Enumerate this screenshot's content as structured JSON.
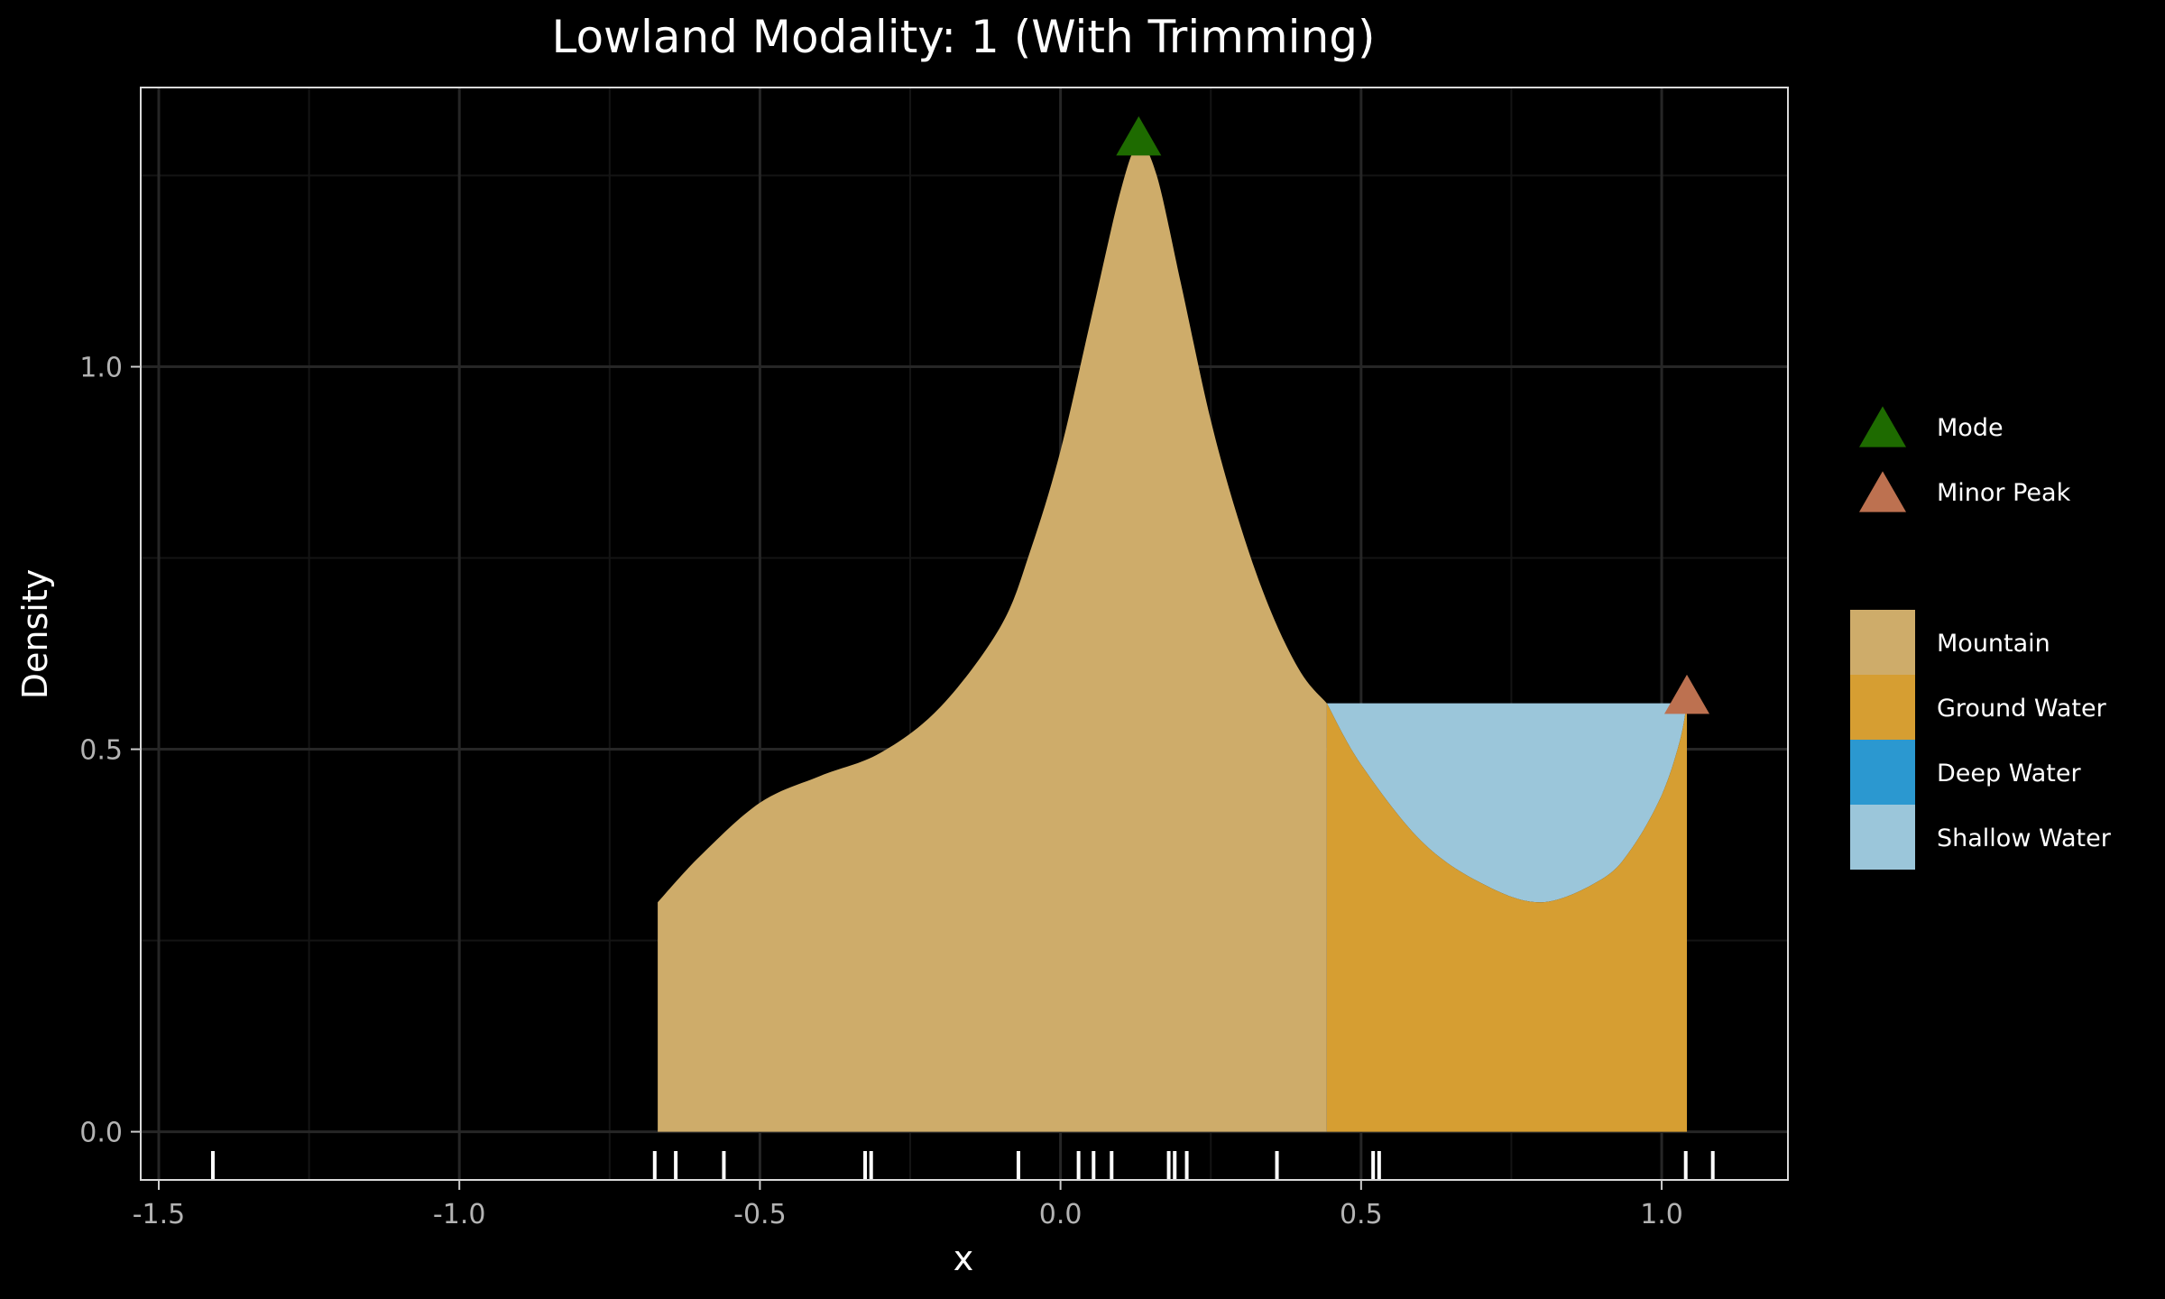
{
  "chart_data": {
    "type": "area",
    "title": "Lowland Modality: 1 (With Trimming)",
    "xlabel": "x",
    "ylabel": "Density",
    "xlim": [
      -1.53,
      1.21
    ],
    "ylim": [
      -0.063,
      1.365
    ],
    "x_ticks": [
      -1.5,
      -1.0,
      -0.5,
      0.0,
      0.5,
      1.0
    ],
    "x_tick_labels": [
      "-1.5",
      "-1.0",
      "-0.5",
      "0.0",
      "0.5",
      "1.0"
    ],
    "y_ticks": [
      0.0,
      0.5,
      1.0
    ],
    "y_tick_labels": [
      "0.0",
      "0.5",
      "1.0"
    ],
    "grid": true,
    "legend_position": "right",
    "colors": {
      "background": "#000000",
      "panel_border": "#d9d9d9",
      "grid_major": "#262626",
      "grid_minor": "#141414",
      "mountain": "#ceac6a",
      "ground_water": "#d69e32",
      "deep_water": "#2b98d0",
      "shallow_water": "#9bc6da",
      "mode": "#1e6b00",
      "minor_peak": "#bd7150",
      "rug": "#ffffff"
    },
    "density": {
      "x": [
        -0.67,
        -0.6,
        -0.5,
        -0.4,
        -0.3,
        -0.2,
        -0.1,
        -0.05,
        0.0,
        0.05,
        0.1,
        0.13,
        0.16,
        0.2,
        0.25,
        0.3,
        0.35,
        0.4,
        0.443,
        0.5,
        0.6,
        0.7,
        0.8,
        0.9,
        0.95,
        1.0,
        1.03,
        1.042
      ],
      "y": [
        0.3,
        0.36,
        0.43,
        0.465,
        0.495,
        0.555,
        0.66,
        0.76,
        0.89,
        1.06,
        1.23,
        1.29,
        1.25,
        1.11,
        0.93,
        0.79,
        0.68,
        0.6,
        0.56,
        0.48,
        0.38,
        0.325,
        0.3,
        0.33,
        0.37,
        0.44,
        0.51,
        0.56
      ]
    },
    "trim_x": 0.443,
    "valley_fill_level": 0.56,
    "series": [
      {
        "name": "Mountain",
        "color": "#ceac6a"
      },
      {
        "name": "Ground Water",
        "color": "#d69e32"
      },
      {
        "name": "Deep Water",
        "color": "#2b98d0"
      },
      {
        "name": "Shallow Water",
        "color": "#9bc6da"
      }
    ],
    "markers": [
      {
        "name": "Mode",
        "x": 0.13,
        "y": 1.29,
        "color": "#1e6b00"
      },
      {
        "name": "Minor Peak",
        "x": 1.042,
        "y": 0.56,
        "color": "#bd7150"
      }
    ],
    "rug": [
      -1.41,
      -0.675,
      -0.64,
      -0.56,
      -0.325,
      -0.315,
      -0.07,
      0.03,
      0.055,
      0.085,
      0.18,
      0.19,
      0.21,
      0.36,
      0.52,
      0.53,
      1.04,
      1.085
    ]
  }
}
